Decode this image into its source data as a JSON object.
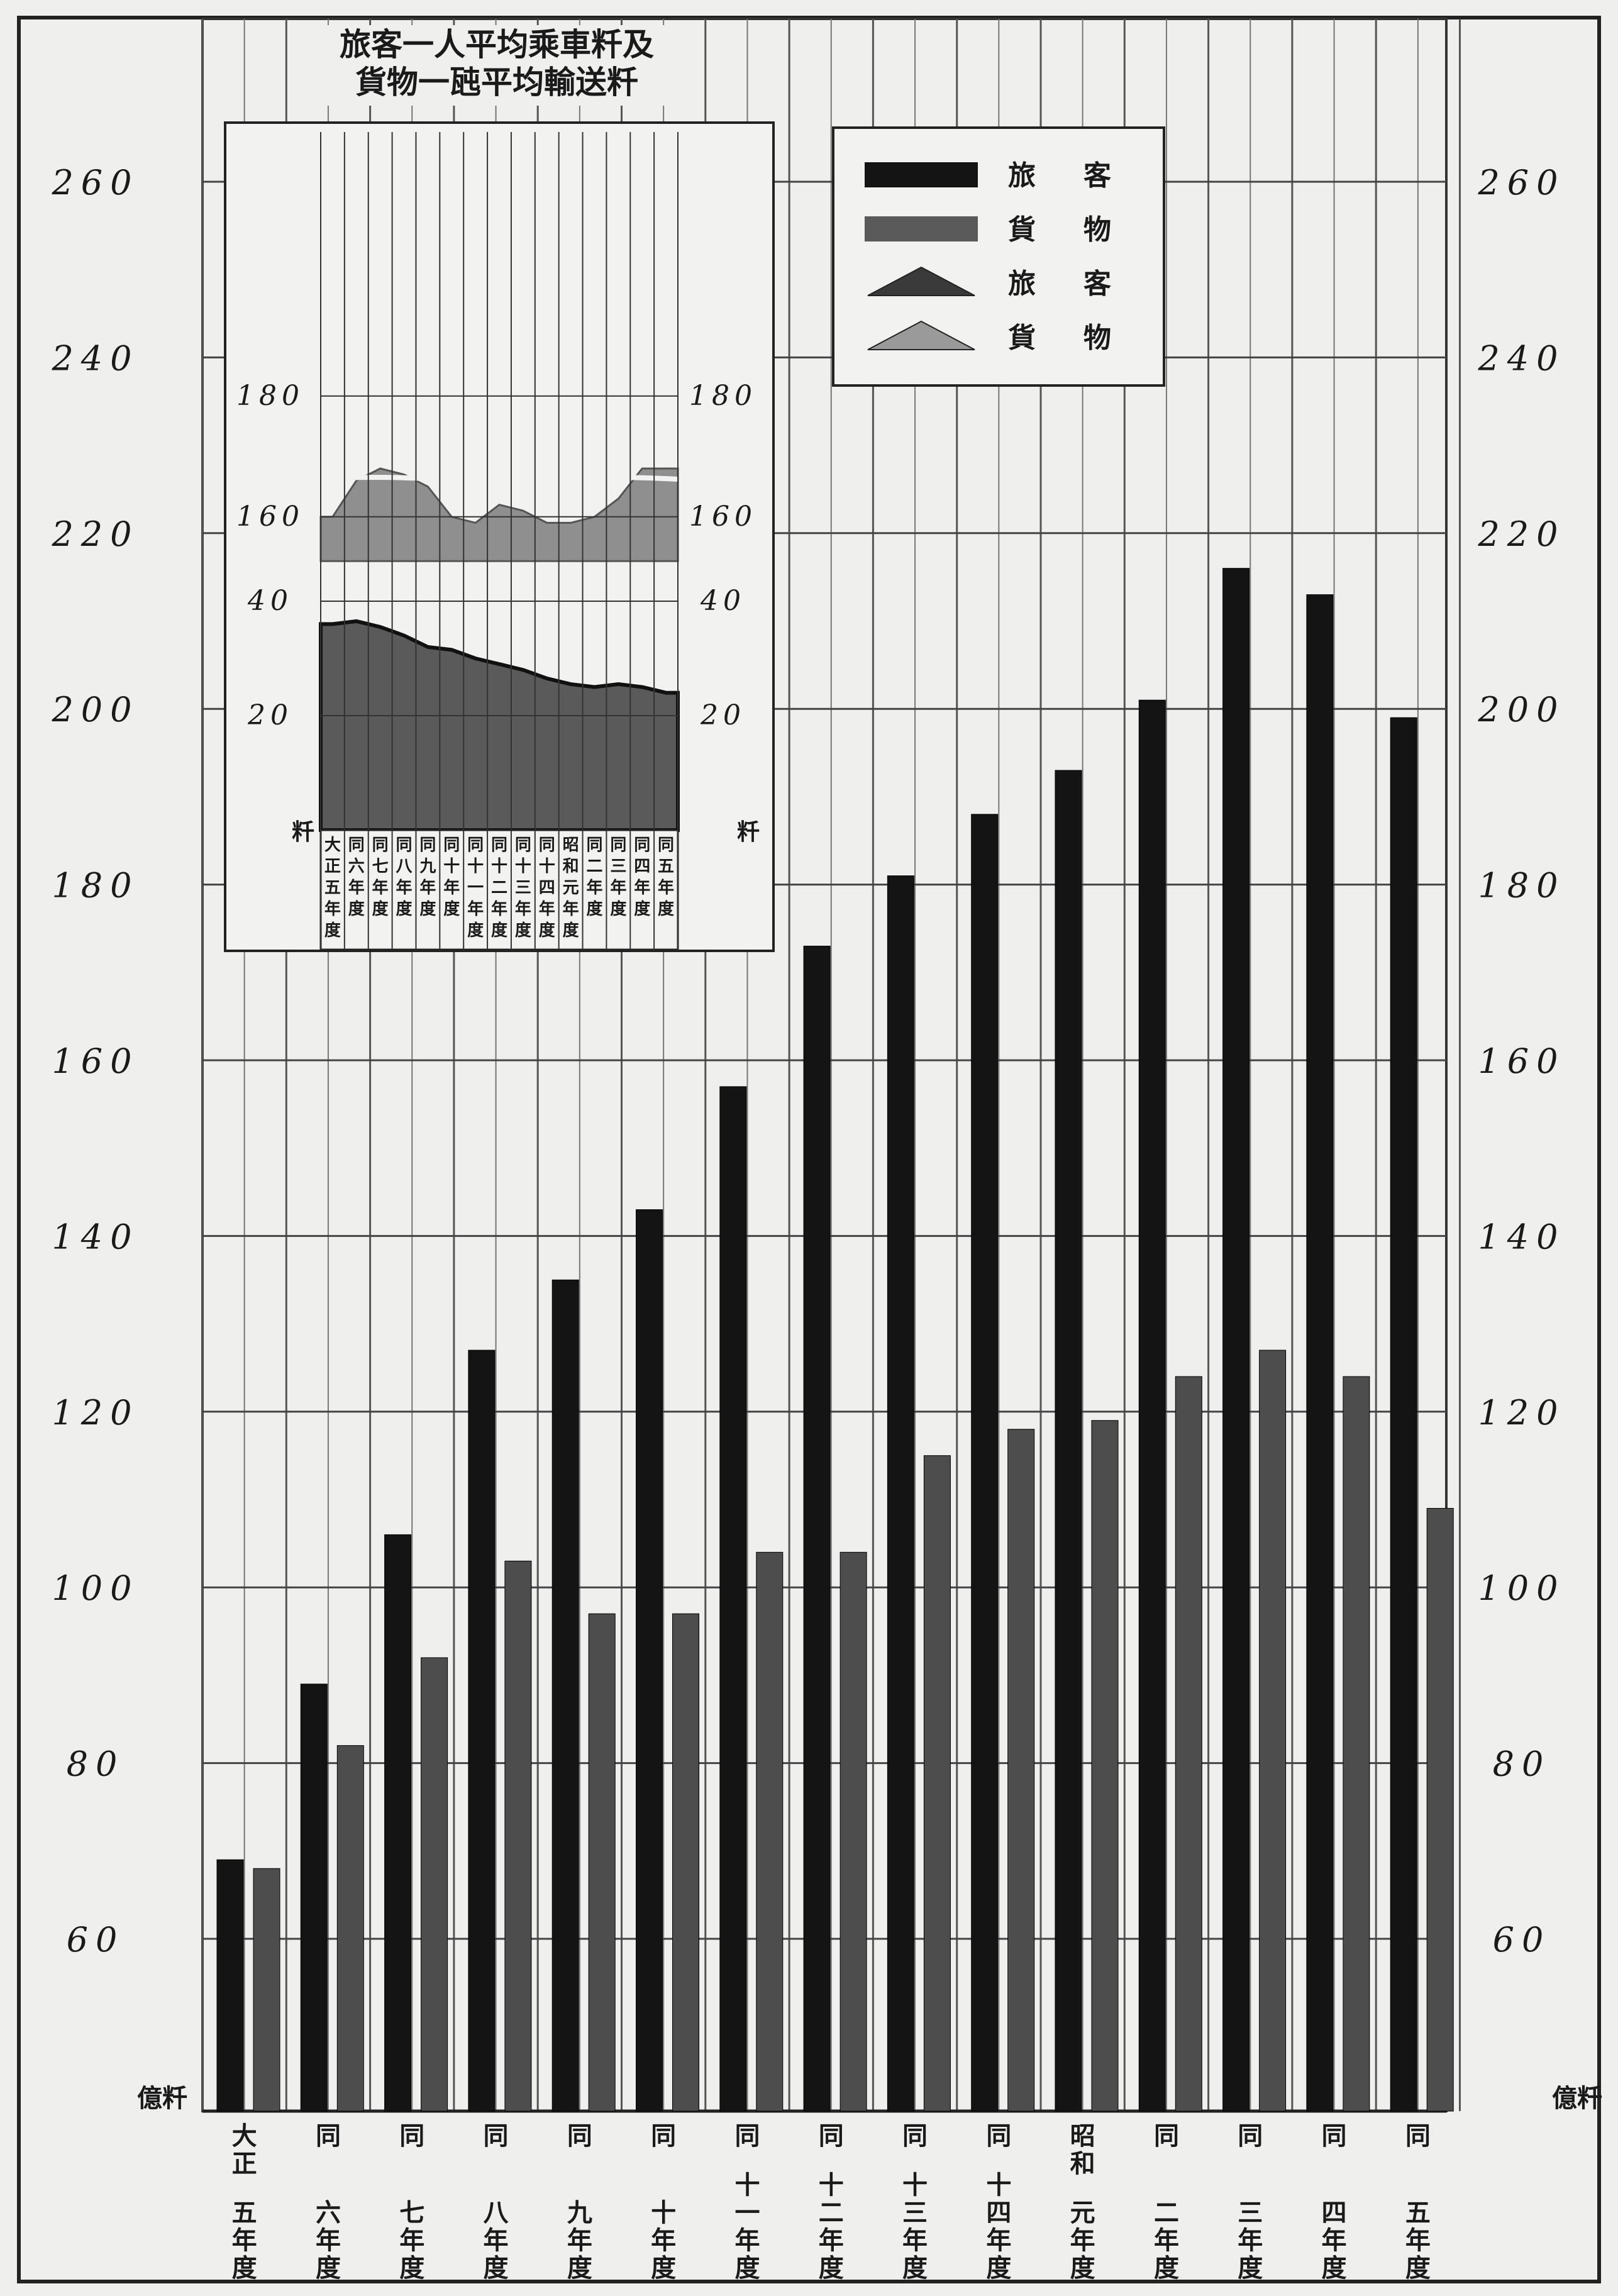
{
  "chart_data": [
    {
      "type": "bar",
      "xlabel": "",
      "ylabel": "億粁",
      "ylabel_right": "億粁",
      "ylim": [
        50,
        275
      ],
      "yticks": [
        60,
        80,
        100,
        120,
        140,
        160,
        180,
        200,
        220,
        240,
        260
      ],
      "categories": [
        "大正五年度",
        "同六年度",
        "同七年度",
        "同八年度",
        "同九年度",
        "同十年度",
        "同十一年度",
        "同十二年度",
        "同十三年度",
        "同十四年度",
        "昭和元年度",
        "同二年度",
        "同三年度",
        "同四年度",
        "同五年度"
      ],
      "category_labels": [
        {
          "top": "大正",
          "bottom": "五年度"
        },
        {
          "top": "同",
          "bottom": "六年度"
        },
        {
          "top": "同",
          "bottom": "七年度"
        },
        {
          "top": "同",
          "bottom": "八年度"
        },
        {
          "top": "同",
          "bottom": "九年度"
        },
        {
          "top": "同",
          "bottom": "十年度"
        },
        {
          "top": "同",
          "bottom": "十一年度"
        },
        {
          "top": "同",
          "bottom": "十二年度"
        },
        {
          "top": "同",
          "bottom": "十三年度"
        },
        {
          "top": "同",
          "bottom": "十四年度"
        },
        {
          "top": "昭和",
          "bottom": "元年度"
        },
        {
          "top": "同",
          "bottom": "二年度"
        },
        {
          "top": "同",
          "bottom": "三年度"
        },
        {
          "top": "同",
          "bottom": "四年度"
        },
        {
          "top": "同",
          "bottom": "五年度"
        }
      ],
      "series": [
        {
          "name": "旅客",
          "color": "#141414",
          "values": [
            69,
            89,
            106,
            127,
            135,
            143,
            157,
            173,
            181,
            188,
            193,
            201,
            216,
            213,
            199
          ]
        },
        {
          "name": "貨物",
          "color": "#4d4d4d",
          "values": [
            68,
            82,
            92,
            103,
            97,
            97,
            104,
            104,
            115,
            118,
            119,
            124,
            127,
            124,
            109
          ]
        }
      ],
      "legend_position": "top-right",
      "grid": true
    },
    {
      "type": "area",
      "title_line1": "旅客一人平均乘車粁及",
      "title_line2": "貨物一瓲平均輸送粁",
      "ylabel": "粁",
      "ylabel_right": "粁",
      "yticks": [
        20,
        40,
        160,
        180
      ],
      "axis_break": [
        47,
        153
      ],
      "categories": [
        "大正五年度",
        "同六年度",
        "同七年度",
        "同八年度",
        "同九年度",
        "同十年度",
        "同十一年度",
        "同十二年度",
        "同十三年度",
        "同十四年度",
        "昭和元年度",
        "同二年度",
        "同三年度",
        "同四年度",
        "同五年度"
      ],
      "category_labels": [
        [
          "大",
          "正",
          "五",
          "年",
          "度"
        ],
        [
          "同",
          "六",
          "年",
          "度"
        ],
        [
          "同",
          "七",
          "年",
          "度"
        ],
        [
          "同",
          "八",
          "年",
          "度"
        ],
        [
          "同",
          "九",
          "年",
          "度"
        ],
        [
          "同",
          "十",
          "年",
          "度"
        ],
        [
          "同",
          "十",
          "一",
          "年",
          "度"
        ],
        [
          "同",
          "十",
          "二",
          "年",
          "度"
        ],
        [
          "同",
          "十",
          "三",
          "年",
          "度"
        ],
        [
          "同",
          "十",
          "四",
          "年",
          "度"
        ],
        [
          "昭",
          "和",
          "元",
          "年",
          "度"
        ],
        [
          "同",
          "二",
          "年",
          "度"
        ],
        [
          "同",
          "三",
          "年",
          "度"
        ],
        [
          "同",
          "四",
          "年",
          "度"
        ],
        [
          "同",
          "五",
          "年",
          "度"
        ]
      ],
      "series": [
        {
          "name": "旅客",
          "color": "#3a3a3a",
          "values": [
            36,
            36.5,
            35.5,
            34,
            32,
            31.5,
            30,
            29,
            28,
            26.5,
            25.5,
            25,
            25.5,
            25,
            24
          ]
        },
        {
          "name": "貨物",
          "color": "#8f8f8f",
          "values": [
            160,
            166,
            168,
            167,
            165,
            160,
            159,
            162,
            161,
            159,
            159,
            160,
            163,
            168,
            168
          ]
        }
      ]
    }
  ],
  "legend": {
    "items": [
      {
        "label": "旅客",
        "marker": "bar",
        "color": "#141414"
      },
      {
        "label": "貨物",
        "marker": "bar",
        "color": "#5a5a5a"
      },
      {
        "label": "旅客",
        "marker": "triangle",
        "color": "#3a3a3a"
      },
      {
        "label": "貨物",
        "marker": "triangle",
        "color": "#9a9a9a"
      }
    ]
  }
}
